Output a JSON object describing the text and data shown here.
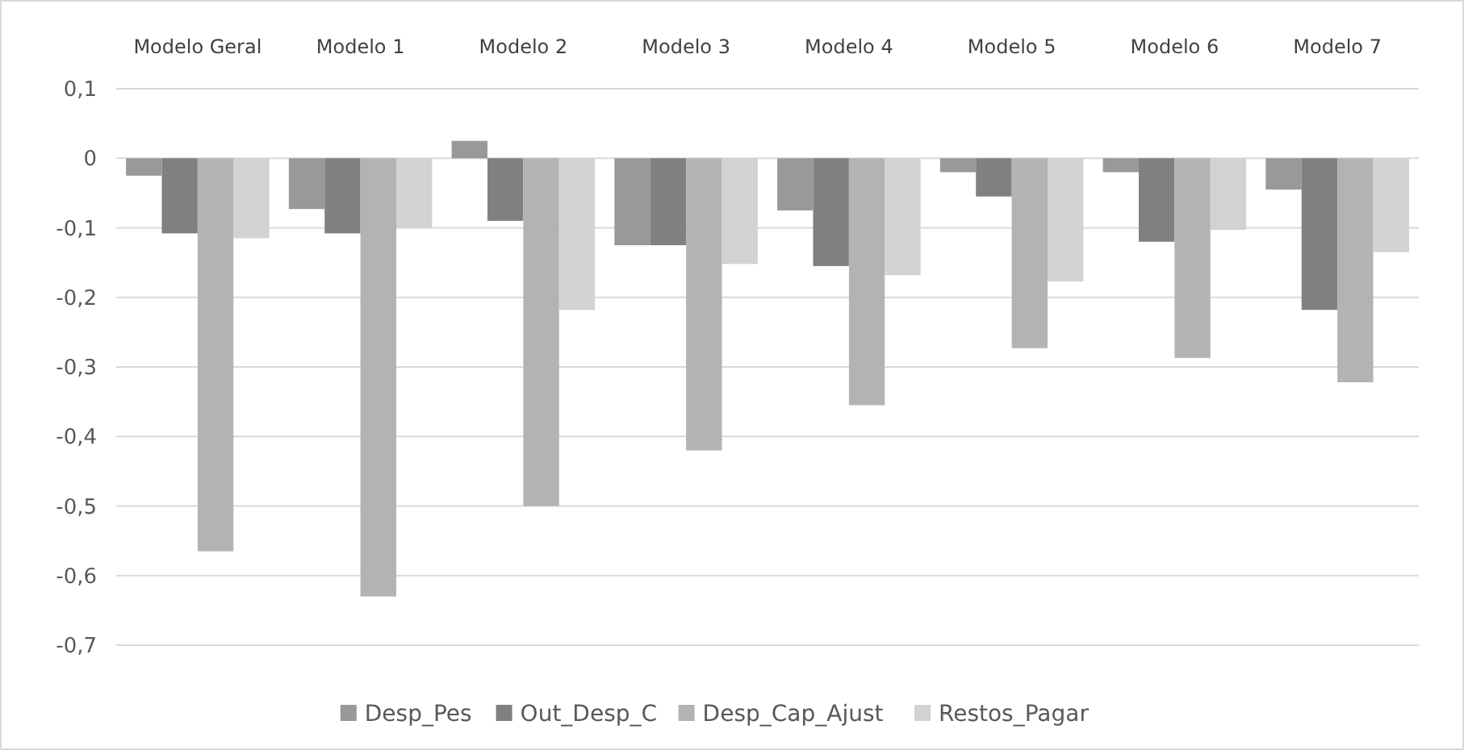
{
  "chart_data": {
    "type": "bar",
    "categories": [
      "Modelo Geral",
      "Modelo 1",
      "Modelo 2",
      "Modelo 3",
      "Modelo 4",
      "Modelo 5",
      "Modelo 6",
      "Modelo 7"
    ],
    "series": [
      {
        "name": "Desp_Pes",
        "color": "#999999",
        "values": [
          -0.025,
          -0.073,
          0.025,
          -0.125,
          -0.075,
          -0.02,
          -0.02,
          -0.045
        ]
      },
      {
        "name": "Out_Desp_C",
        "color": "#808080",
        "values": [
          -0.108,
          -0.108,
          -0.09,
          -0.125,
          -0.155,
          -0.055,
          -0.12,
          -0.218
        ]
      },
      {
        "name": "Desp_Cap_Ajust",
        "color": "#b3b3b3",
        "values": [
          -0.565,
          -0.63,
          -0.5,
          -0.42,
          -0.355,
          -0.273,
          -0.287,
          -0.322
        ]
      },
      {
        "name": "Restos_Pagar",
        "color": "#d2d2d2",
        "values": [
          -0.115,
          -0.1,
          -0.218,
          -0.152,
          -0.168,
          -0.177,
          -0.103,
          -0.135
        ]
      }
    ],
    "ylim": [
      -0.7,
      0.1
    ],
    "yticks": [
      {
        "value": 0.1,
        "label": "0,1"
      },
      0,
      {
        "value": -0.1,
        "label": "-0,1"
      },
      {
        "value": -0.2,
        "label": "-0,2"
      },
      {
        "value": -0.3,
        "label": "-0,3"
      },
      {
        "value": -0.4,
        "label": "-0,4"
      },
      {
        "value": -0.5,
        "label": "-0,5"
      },
      {
        "value": -0.6,
        "label": "-0,6"
      },
      {
        "value": -0.7,
        "label": "-0,7"
      }
    ],
    "grid": "y",
    "legend": "bottom"
  }
}
